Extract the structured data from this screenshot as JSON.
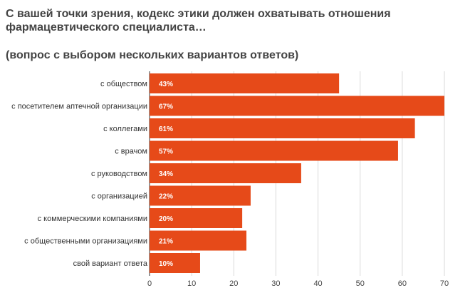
{
  "title": {
    "line1": "С вашей точки зрения, кодекс этики должен охватывать отношения",
    "line2": "фармацевтического специалиста…",
    "line3": "(вопрос с выбором нескольких вариантов ответов)"
  },
  "chart_data": {
    "type": "bar",
    "orientation": "horizontal",
    "title": "С вашей точки зрения, кодекс этики должен охватывать отношения фармацевтического специалиста… (вопрос с выбором нескольких вариантов ответов)",
    "categories": [
      "с обществом",
      "с посетителем аптечной организации",
      "с коллегами",
      "с врачом",
      "с руководством",
      "с организацией",
      "с коммерческими компаниями",
      "с общественными организациями",
      "свой вариант ответа"
    ],
    "values": [
      45,
      70,
      63,
      59,
      36,
      24,
      22,
      23,
      12
    ],
    "labels": [
      "43%",
      "67%",
      "61%",
      "57%",
      "34%",
      "22%",
      "20%",
      "21%",
      "10%"
    ],
    "xlim": [
      0,
      70
    ],
    "xticks": [
      "0",
      "10",
      "20",
      "30",
      "40",
      "50",
      "60",
      "70"
    ],
    "xlabel": "",
    "ylabel": "",
    "grid": true,
    "bar_color": "#e64a19"
  }
}
